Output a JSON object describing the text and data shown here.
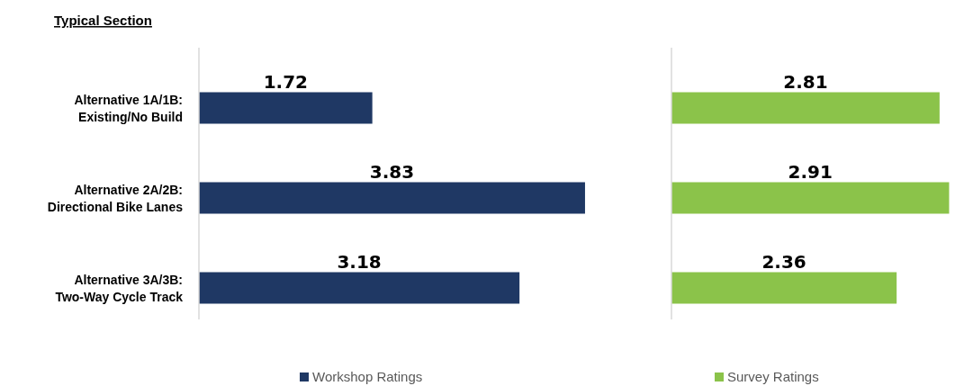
{
  "chart_data": [
    {
      "type": "bar",
      "orientation": "horizontal",
      "title": "Typical Section",
      "categories": [
        "Alternative 1A/1B:\nExisting/No Build",
        "Alternative 2A/2B:\nDirectional Bike Lanes",
        "Alternative 3A/3B:\nTwo-Way Cycle Track"
      ],
      "series": [
        {
          "name": "Workshop Ratings",
          "color": "#1f3864",
          "values": [
            1.72,
            3.83,
            3.18
          ]
        }
      ],
      "data_labels": true,
      "legend": "bottom",
      "tick_labels": "y",
      "grid": false
    },
    {
      "type": "bar",
      "orientation": "horizontal",
      "categories": [
        null,
        null,
        null
      ],
      "series": [
        {
          "name": "Survey Ratings",
          "color": "#8bc34a",
          "values": [
            2.81,
            2.91,
            2.36
          ]
        }
      ],
      "data_labels": true,
      "legend": "bottom",
      "tick_labels": false,
      "grid": false
    }
  ]
}
